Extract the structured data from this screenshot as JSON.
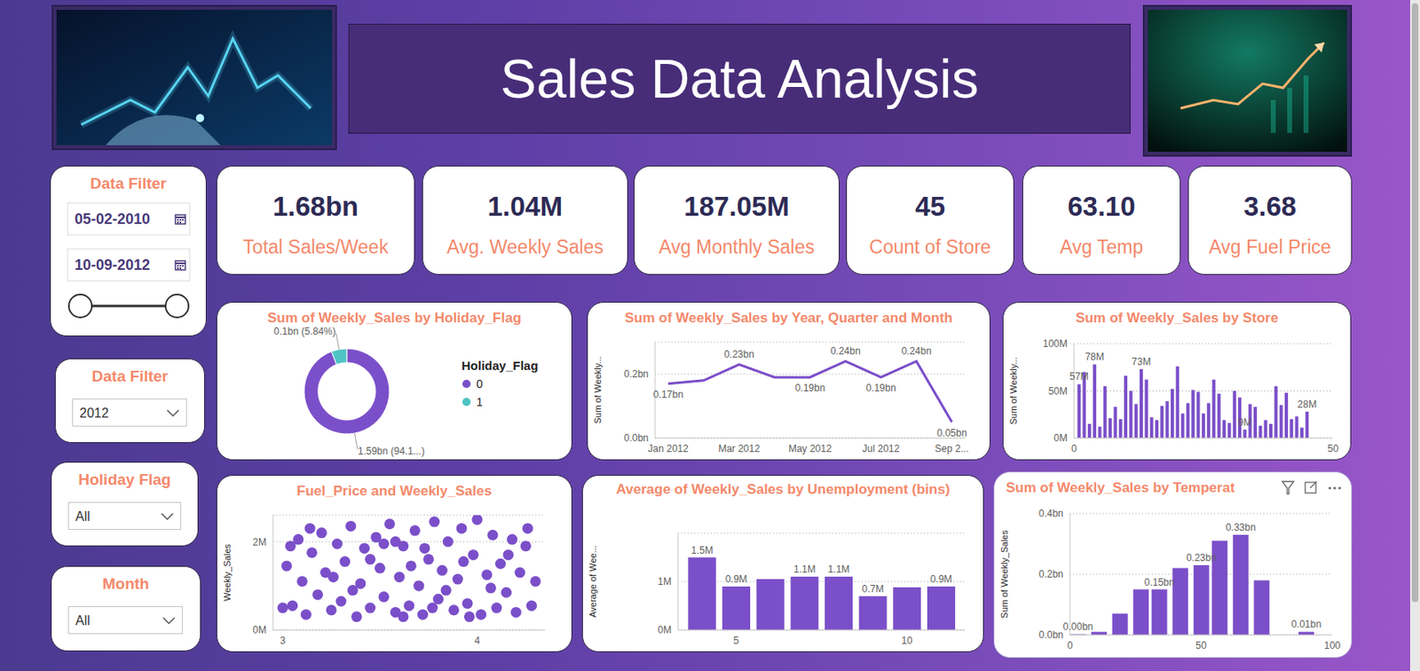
{
  "header": {
    "title": "Sales Data Analysis"
  },
  "kpis": [
    {
      "value": "1.68bn",
      "label": "Total Sales/Week"
    },
    {
      "value": "1.04M",
      "label": "Avg. Weekly Sales"
    },
    {
      "value": "187.05M",
      "label": "Avg Monthly Sales"
    },
    {
      "value": "45",
      "label": "Count of Store"
    },
    {
      "value": "63.10",
      "label": "Avg Temp"
    },
    {
      "value": "3.68",
      "label": "Avg Fuel Price"
    }
  ],
  "filters": [
    {
      "title": "Data Filter",
      "start": "05-02-2010",
      "end": "10-09-2012"
    },
    {
      "title": "Data Filter",
      "selected": "2012"
    },
    {
      "title": "Holiday Flag",
      "selected": "All"
    },
    {
      "title": "Month",
      "selected": "All"
    }
  ],
  "chart_data": [
    {
      "type": "donut",
      "title": "Sum of Weekly_Sales by Holiday_Flag",
      "categories": [
        "0",
        "1"
      ],
      "values": [
        1.586,
        0.0984
      ],
      "value_labels": [
        "1.59bn (94.1...)",
        "0.1bn (5.84%)"
      ],
      "colors": [
        "#7b4fc9",
        "#4fc4c4"
      ],
      "legend": "right",
      "legend_title": "Holiday_Flag",
      "data_labels": true
    },
    {
      "type": "line",
      "title": "Sum of Weekly_Sales by Year, Quarter and Month",
      "categories": [
        "Jan 2012",
        null,
        "Mar 2012",
        null,
        "May 2012",
        null,
        "Jul 2012",
        null,
        "Sep 2..."
      ],
      "values": [
        0.17,
        0.18,
        0.23,
        0.19,
        0.19,
        0.24,
        0.19,
        0.24,
        0.05
      ],
      "value_labels": [
        "0.17bn",
        null,
        "0.23bn",
        null,
        "0.19bn",
        "0.24bn",
        "0.19bn",
        "0.24bn",
        "0.05bn"
      ],
      "color": "#7b4fc9",
      "y_label": "Sum of Weekly...",
      "ylim": [
        0,
        0.3
      ],
      "yticks": [
        {
          "value": 0,
          "label": "0.0bn"
        },
        {
          "value": 0.2,
          "label": "0.2bn"
        }
      ],
      "grid": true,
      "data_labels": true
    },
    {
      "type": "bar",
      "title": "Sum of Weekly_Sales by Store",
      "x": [
        1,
        2,
        3,
        4,
        5,
        6,
        7,
        8,
        9,
        10,
        11,
        12,
        13,
        14,
        15,
        16,
        17,
        18,
        19,
        20,
        21,
        22,
        23,
        24,
        25,
        26,
        27,
        28,
        29,
        30,
        31,
        32,
        33,
        34,
        35,
        36,
        37,
        38,
        39,
        40,
        41,
        42,
        43,
        44,
        45
      ],
      "values": [
        57,
        70,
        15,
        78,
        12,
        55,
        21,
        33,
        20,
        66,
        50,
        36,
        73,
        62,
        22,
        19,
        34,
        39,
        52,
        76,
        26,
        37,
        51,
        49,
        26,
        37,
        62,
        47,
        19,
        16,
        50,
        43,
        9,
        36,
        33,
        13,
        19,
        15,
        55,
        35,
        48,
        20,
        23,
        11,
        28
      ],
      "value_labels": [
        "57M",
        null,
        null,
        "78M",
        null,
        null,
        null,
        null,
        null,
        null,
        null,
        null,
        "73M",
        null,
        null,
        null,
        null,
        null,
        null,
        null,
        null,
        null,
        null,
        null,
        null,
        null,
        null,
        null,
        null,
        null,
        null,
        null,
        "9M",
        null,
        null,
        null,
        null,
        null,
        null,
        null,
        null,
        null,
        null,
        null,
        "28M"
      ],
      "color": "#7b4fc9",
      "y_label": "Sum of Weekly...",
      "xlim": [
        0,
        50
      ],
      "xticks": [
        0,
        50
      ],
      "ylim": [
        0,
        100
      ],
      "yticks": [
        {
          "value": 0,
          "label": "0M"
        },
        {
          "value": 50,
          "label": "50M"
        },
        {
          "value": 100,
          "label": "100M"
        }
      ],
      "grid": true,
      "data_labels": true
    },
    {
      "type": "scatter",
      "title": "Fuel_Price and Weekly_Sales",
      "x": [
        3.02,
        3.05,
        3.08,
        3.1,
        3.12,
        3.15,
        3.18,
        3.2,
        3.22,
        3.25,
        3.28,
        3.3,
        3.32,
        3.35,
        3.38,
        3.4,
        3.42,
        3.45,
        3.48,
        3.5,
        3.52,
        3.55,
        3.58,
        3.6,
        3.62,
        3.65,
        3.68,
        3.7,
        3.72,
        3.75,
        3.78,
        3.8,
        3.82,
        3.85,
        3.88,
        3.9,
        3.92,
        3.95,
        3.98,
        4.0,
        4.02,
        4.05,
        4.08,
        4.1,
        4.12,
        4.15,
        4.18,
        4.2,
        4.22,
        4.25,
        4.28,
        4.3,
        3.0,
        3.45,
        3.66,
        3.84,
        4.07,
        3.26,
        3.58,
        3.73,
        3.93,
        3.14,
        3.36,
        3.52,
        4.16,
        3.96,
        3.04,
        3.77,
        4.26,
        3.62
      ],
      "values": [
        1.45,
        0.55,
        2.05,
        1.1,
        0.35,
        1.75,
        0.8,
        2.2,
        1.3,
        0.45,
        1.95,
        0.65,
        1.55,
        2.35,
        0.3,
        1.05,
        1.85,
        0.5,
        2.1,
        1.4,
        0.75,
        2.4,
        0.4,
        1.2,
        1.9,
        0.55,
        2.25,
        1.0,
        0.35,
        1.6,
        2.45,
        0.7,
        1.35,
        2.0,
        0.45,
        1.15,
        2.3,
        0.6,
        1.7,
        2.5,
        0.35,
        1.25,
        2.15,
        0.5,
        1.5,
        0.85,
        2.05,
        0.4,
        1.3,
        1.9,
        0.55,
        1.1,
        0.5,
        1.6,
        1.45,
        0.9,
        0.95,
        1.2,
        2.0,
        1.85,
        1.55,
        2.3,
        0.9,
        1.95,
        1.7,
        0.3,
        1.9,
        0.5,
        2.3,
        0.3
      ],
      "color": "#7b4fc9",
      "marker": "circle",
      "y_label": "Weekly_Sales",
      "xlim": [
        2.95,
        4.35
      ],
      "xticks": [
        3,
        4
      ],
      "ylim": [
        0,
        2.6
      ],
      "yticks": [
        {
          "value": 0,
          "label": "0M"
        },
        {
          "value": 2,
          "label": "2M"
        }
      ],
      "grid": true
    },
    {
      "type": "bar",
      "title": "Average of Weekly_Sales by Unemployment (bins)",
      "x": [
        4,
        5,
        6,
        7,
        8,
        9,
        10,
        11
      ],
      "values": [
        1.5,
        0.9,
        1.05,
        1.1,
        1.1,
        0.7,
        0.88,
        0.9
      ],
      "value_labels": [
        "1.5M",
        "0.9M",
        null,
        "1.1M",
        "1.1M",
        "0.7M",
        null,
        "0.9M"
      ],
      "color": "#7b4fc9",
      "y_label": "Average of Wee...",
      "xlim": [
        3.3,
        11.7
      ],
      "xticks": [
        5,
        10
      ],
      "ylim": [
        0,
        2
      ],
      "yticks": [
        {
          "value": 0,
          "label": "0M"
        },
        {
          "value": 1,
          "label": "1M"
        }
      ],
      "grid": true,
      "data_labels": true
    },
    {
      "type": "bar",
      "title": "Sum of Weekly_Sales by Temperat",
      "x": [
        3,
        11,
        19,
        27,
        34,
        42,
        50,
        57,
        65,
        73,
        90
      ],
      "values": [
        0.002,
        0.01,
        0.07,
        0.15,
        0.15,
        0.22,
        0.23,
        0.31,
        0.33,
        0.18,
        0.01
      ],
      "value_labels": [
        "0.00bn",
        null,
        null,
        null,
        "0.15bn",
        null,
        "0.23bn",
        null,
        "0.33bn",
        null,
        "0.01bn"
      ],
      "color": "#7b4fc9",
      "y_label": "Sum of Weekly_Sales",
      "xlim": [
        0,
        100
      ],
      "xticks": [
        0,
        50,
        100
      ],
      "ylim": [
        0,
        0.4
      ],
      "yticks": [
        {
          "value": 0,
          "label": "0.0bn"
        },
        {
          "value": 0.2,
          "label": "0.2bn"
        },
        {
          "value": 0.4,
          "label": "0.4bn"
        }
      ],
      "grid": true,
      "data_labels": true
    }
  ]
}
